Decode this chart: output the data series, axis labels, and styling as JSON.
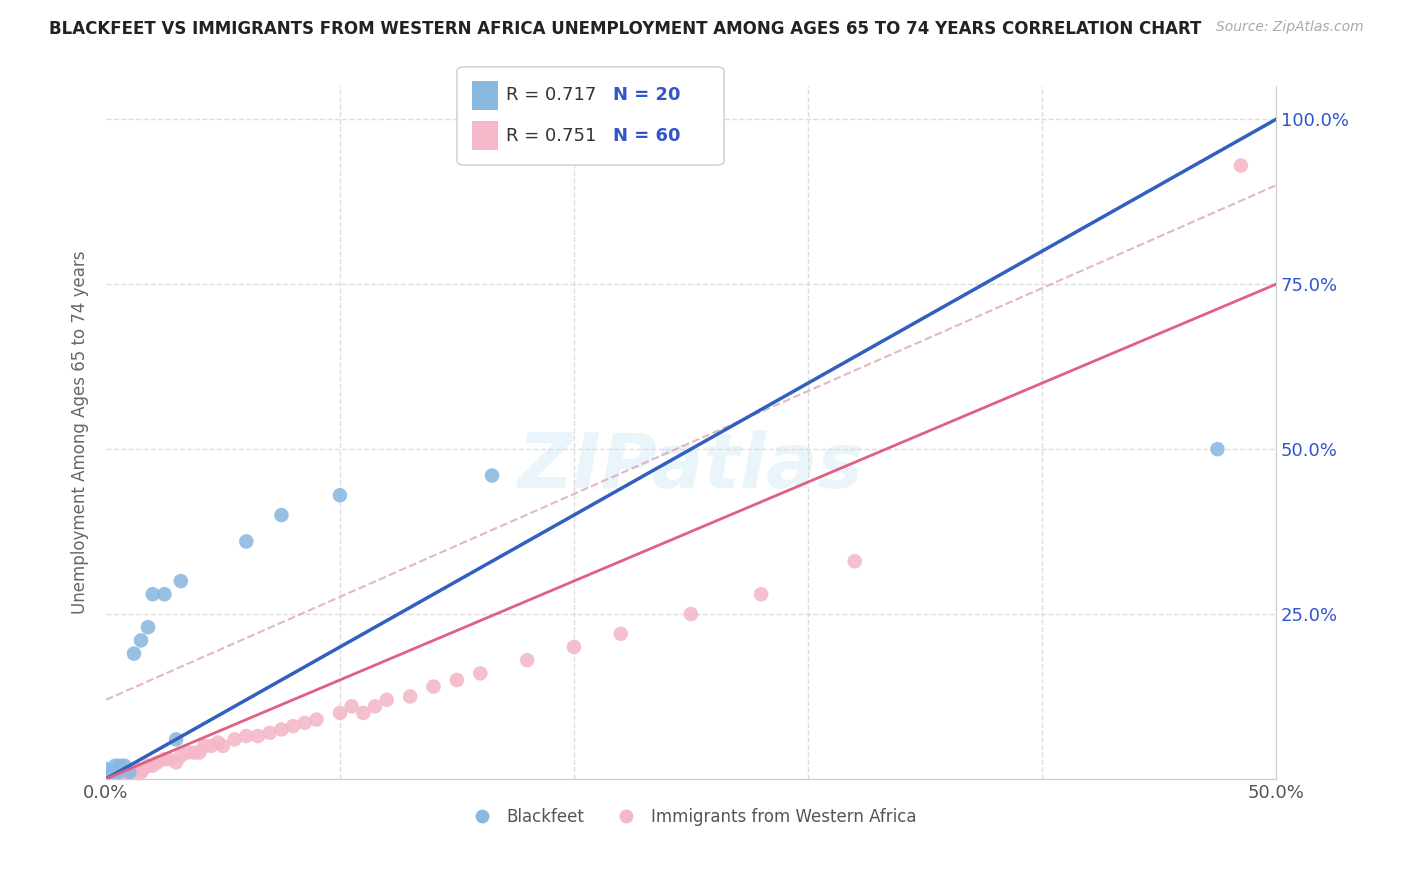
{
  "title": "BLACKFEET VS IMMIGRANTS FROM WESTERN AFRICA UNEMPLOYMENT AMONG AGES 65 TO 74 YEARS CORRELATION CHART",
  "source": "Source: ZipAtlas.com",
  "ylabel": "Unemployment Among Ages 65 to 74 years",
  "xlim": [
    0.0,
    0.5
  ],
  "ylim": [
    0.0,
    1.05
  ],
  "blue_color": "#8ab8e0",
  "pink_color": "#f4b8c8",
  "line_blue": "#3060c0",
  "line_pink": "#e06080",
  "line_gray_dashed": "#d8a0b0",
  "grid_color": "#dddddd",
  "background": "#ffffff",
  "watermark": "ZIPatlas",
  "blue_text": "#3355cc",
  "legend_r1": "R = 0.717",
  "legend_n1": "N = 20",
  "legend_r2": "R = 0.751",
  "legend_n2": "N = 60",
  "blue_line_x0": 0.0,
  "blue_line_y0": 0.0,
  "blue_line_x1": 0.5,
  "blue_line_y1": 1.0,
  "pink_line_x0": 0.0,
  "pink_line_y0": 0.0,
  "pink_line_x1": 0.5,
  "pink_line_y1": 0.75,
  "gray_line_x0": 0.0,
  "gray_line_y0": 0.12,
  "gray_line_x1": 0.5,
  "gray_line_y1": 0.9,
  "blackfeet_x": [
    0.0,
    0.0,
    0.002,
    0.004,
    0.005,
    0.006,
    0.008,
    0.01,
    0.012,
    0.015,
    0.018,
    0.02,
    0.025,
    0.03,
    0.032,
    0.06,
    0.075,
    0.1,
    0.165,
    0.475
  ],
  "blackfeet_y": [
    0.01,
    0.015,
    0.01,
    0.02,
    0.01,
    0.02,
    0.02,
    0.01,
    0.19,
    0.21,
    0.23,
    0.28,
    0.28,
    0.06,
    0.3,
    0.36,
    0.4,
    0.43,
    0.46,
    0.5
  ],
  "africa_x": [
    0.0,
    0.0,
    0.0,
    0.0,
    0.0,
    0.002,
    0.002,
    0.003,
    0.004,
    0.005,
    0.005,
    0.006,
    0.007,
    0.008,
    0.008,
    0.009,
    0.01,
    0.01,
    0.012,
    0.013,
    0.015,
    0.016,
    0.018,
    0.02,
    0.022,
    0.025,
    0.027,
    0.03,
    0.032,
    0.035,
    0.038,
    0.04,
    0.042,
    0.045,
    0.048,
    0.05,
    0.055,
    0.06,
    0.065,
    0.07,
    0.075,
    0.08,
    0.085,
    0.09,
    0.1,
    0.105,
    0.11,
    0.115,
    0.12,
    0.13,
    0.14,
    0.15,
    0.16,
    0.18,
    0.2,
    0.22,
    0.25,
    0.28,
    0.32,
    0.485
  ],
  "africa_y": [
    0.0,
    0.0,
    0.0,
    0.005,
    0.01,
    0.0,
    0.005,
    0.0,
    0.005,
    0.0,
    0.005,
    0.005,
    0.01,
    0.005,
    0.01,
    0.005,
    0.005,
    0.01,
    0.01,
    0.015,
    0.01,
    0.015,
    0.02,
    0.02,
    0.025,
    0.03,
    0.03,
    0.025,
    0.035,
    0.04,
    0.04,
    0.04,
    0.05,
    0.05,
    0.055,
    0.05,
    0.06,
    0.065,
    0.065,
    0.07,
    0.075,
    0.08,
    0.085,
    0.09,
    0.1,
    0.11,
    0.1,
    0.11,
    0.12,
    0.125,
    0.14,
    0.15,
    0.16,
    0.18,
    0.2,
    0.22,
    0.25,
    0.28,
    0.33,
    0.93
  ]
}
